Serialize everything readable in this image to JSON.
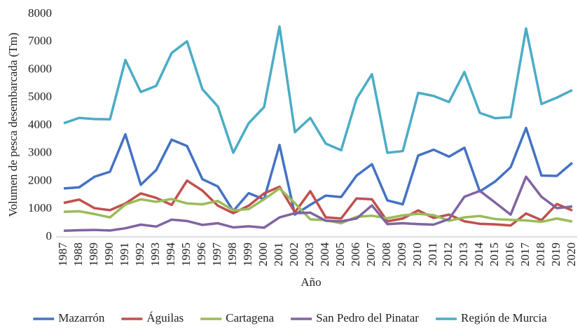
{
  "chart_data": {
    "type": "line",
    "x_label": "Año",
    "y_label": "Volumen de pesca desembarcada (Tm)",
    "categories": [
      "1987",
      "1988",
      "1989",
      "1990",
      "1991",
      "1992",
      "1993",
      "1994",
      "1995",
      "1996",
      "1997",
      "1998",
      "1999",
      "2000",
      "2001",
      "2002",
      "2003",
      "2004",
      "2005",
      "2006",
      "2007",
      "2008",
      "2009",
      "2010",
      "2011",
      "2012",
      "2013",
      "2014",
      "2015",
      "2016",
      "2017",
      "2018",
      "2019",
      "2020"
    ],
    "series": [
      {
        "name": "Mazarrón",
        "color": "#4472c4",
        "values": [
          1740,
          1780,
          2160,
          2340,
          3680,
          1870,
          2400,
          3490,
          3260,
          2070,
          1810,
          930,
          1570,
          1350,
          3300,
          800,
          1150,
          1480,
          1430,
          2200,
          2610,
          1310,
          1170,
          2920,
          3130,
          2880,
          3200,
          1630,
          1990,
          2500,
          3910,
          2200,
          2190,
          2660
        ]
      },
      {
        "name": "Águilas",
        "color": "#c0504d",
        "values": [
          1220,
          1340,
          1030,
          960,
          1200,
          1560,
          1400,
          1150,
          2020,
          1660,
          1120,
          850,
          1120,
          1560,
          1800,
          880,
          1640,
          700,
          660,
          1380,
          1350,
          560,
          660,
          950,
          680,
          800,
          560,
          470,
          450,
          410,
          840,
          600,
          1180,
          950
        ]
      },
      {
        "name": "Cartagena",
        "color": "#9bbb59",
        "values": [
          900,
          920,
          820,
          700,
          1160,
          1350,
          1260,
          1360,
          1200,
          1170,
          1290,
          950,
          1000,
          1350,
          1740,
          1210,
          630,
          600,
          490,
          720,
          760,
          670,
          770,
          830,
          780,
          580,
          700,
          750,
          640,
          610,
          590,
          540,
          660,
          550
        ]
      },
      {
        "name": "San Pedro del Pinatar",
        "color": "#8064a2",
        "values": [
          220,
          240,
          250,
          230,
          310,
          440,
          370,
          620,
          570,
          430,
          490,
          340,
          380,
          330,
          700,
          850,
          870,
          580,
          560,
          660,
          1130,
          460,
          490,
          460,
          440,
          640,
          1440,
          1650,
          1230,
          800,
          2160,
          1440,
          1030,
          1090
        ]
      },
      {
        "name": "Región de Murcia",
        "color": "#4bacc6",
        "values": [
          4080,
          4270,
          4230,
          4220,
          6350,
          5200,
          5420,
          6600,
          7020,
          5300,
          4680,
          3020,
          4080,
          4660,
          7550,
          3760,
          4270,
          3350,
          3110,
          4960,
          5840,
          3020,
          3080,
          5170,
          5060,
          4840,
          5920,
          4450,
          4260,
          4300,
          7480,
          4770,
          5000,
          5270
        ]
      }
    ],
    "ylim": [
      0,
      8000
    ],
    "yticks": [
      0,
      1000,
      2000,
      3000,
      4000,
      5000,
      6000,
      7000,
      8000
    ],
    "legend": "bottom"
  }
}
